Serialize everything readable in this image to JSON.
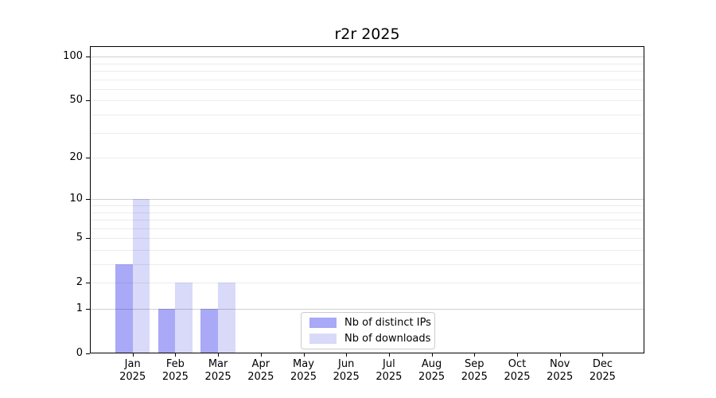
{
  "chart_data": {
    "type": "bar",
    "title": "r2r 2025",
    "year": "2025",
    "categories": [
      "Jan",
      "Feb",
      "Mar",
      "Apr",
      "May",
      "Jun",
      "Jul",
      "Aug",
      "Sep",
      "Oct",
      "Nov",
      "Dec"
    ],
    "series": [
      {
        "name": "Nb of distinct IPs",
        "color": "#a9a9f7",
        "values": [
          3,
          1,
          1,
          0,
          0,
          0,
          0,
          0,
          0,
          0,
          0,
          0
        ]
      },
      {
        "name": "Nb of downloads",
        "color": "#d9d9f9",
        "values": [
          10,
          2,
          2,
          0,
          0,
          0,
          0,
          0,
          0,
          0,
          0,
          0
        ]
      }
    ],
    "yscale": "log1p",
    "ylim": [
      0,
      118
    ],
    "yticks": [
      0,
      1,
      2,
      5,
      10,
      20,
      50,
      100
    ],
    "grid": {
      "major_values": [
        1,
        10,
        100
      ],
      "minor_values": [
        2,
        3,
        4,
        5,
        6,
        7,
        8,
        9,
        20,
        30,
        40,
        50,
        60,
        70,
        80,
        90
      ],
      "major_color": "#d0d0d0",
      "minor_color": "#ececec"
    },
    "legend": {
      "position": "lower center",
      "entries": [
        "Nb of distinct IPs",
        "Nb of downloads"
      ]
    },
    "background": "#ffffff",
    "text_color": "#000000"
  }
}
